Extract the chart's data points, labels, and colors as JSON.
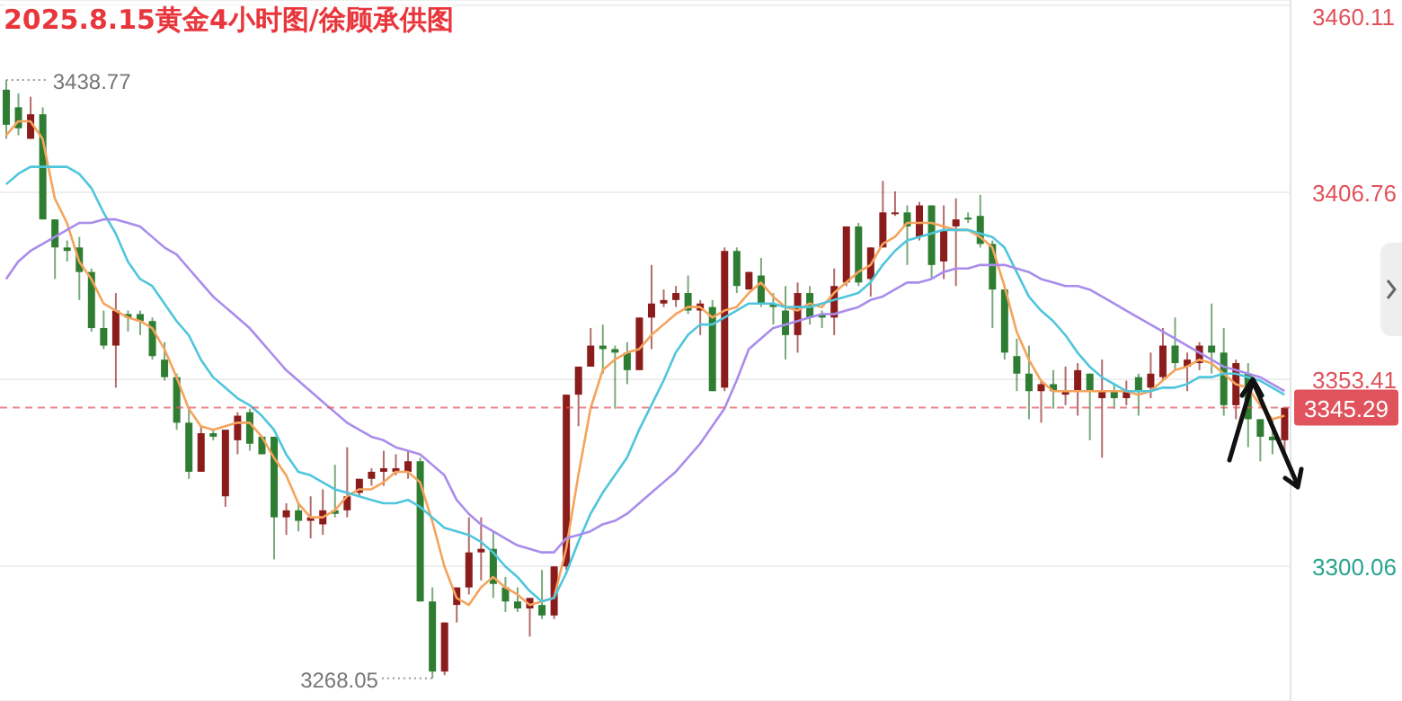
{
  "chart_data": {
    "type": "candlestick",
    "title": "2025.8.15黄金4小时图/徐顾承供图",
    "categories": [
      null,
      null,
      null,
      null,
      null,
      null,
      null,
      null,
      null,
      null,
      null,
      null,
      null,
      null,
      null,
      null,
      null,
      null,
      null,
      null,
      null,
      null,
      null,
      null,
      null,
      null,
      null,
      null,
      null,
      null,
      null,
      null,
      null,
      null,
      null,
      null,
      null,
      null,
      null,
      null,
      null,
      null,
      null,
      null,
      null,
      null,
      null,
      null,
      null,
      null,
      null,
      null,
      null,
      null,
      null,
      null,
      null,
      null,
      null,
      null,
      null,
      null,
      null,
      null,
      null,
      null,
      null,
      null,
      null,
      null,
      null,
      null,
      null,
      null,
      null,
      null,
      null,
      null,
      null,
      null,
      null,
      null,
      null,
      null,
      null,
      null,
      null,
      null,
      null,
      null,
      null,
      null,
      null,
      null,
      null,
      null,
      null,
      null,
      null,
      null,
      null,
      null,
      null,
      null,
      null,
      null
    ],
    "ohlc": [
      [
        3436,
        3438.77,
        3422,
        3426
      ],
      [
        3431,
        3435,
        3423,
        3425
      ],
      [
        3422,
        3434,
        3422,
        3429
      ],
      [
        3429,
        3431,
        3399,
        3399
      ],
      [
        3399,
        3399,
        3382,
        3391
      ],
      [
        3391,
        3393,
        3387,
        3390
      ],
      [
        3391,
        3394,
        3376,
        3384
      ],
      [
        3384,
        3385,
        3367,
        3368
      ],
      [
        3368,
        3373,
        3362,
        3363
      ],
      [
        3363,
        3378,
        3351,
        3373
      ],
      [
        3372,
        3373,
        3367,
        3371
      ],
      [
        3372,
        3373,
        3366,
        3370
      ],
      [
        3370,
        3371,
        3359,
        3360
      ],
      [
        3359,
        3364,
        3353,
        3354
      ],
      [
        3354,
        3355,
        3339,
        3341
      ],
      [
        3341,
        3345,
        3325,
        3327
      ],
      [
        3327,
        3340,
        3327,
        3338
      ],
      [
        3338,
        3339,
        3336,
        3337
      ],
      [
        3320,
        3339,
        3317,
        3339
      ],
      [
        3336,
        3344,
        3332,
        3343
      ],
      [
        3344,
        3345,
        3333,
        3335
      ],
      [
        3337,
        3337,
        3332,
        3332
      ],
      [
        3337,
        3337,
        3302,
        3314
      ],
      [
        3314,
        3318,
        3309,
        3316
      ],
      [
        3316,
        3318,
        3310,
        3313
      ],
      [
        3313,
        3320,
        3308,
        3314
      ],
      [
        3312,
        3322,
        3309,
        3316
      ],
      [
        3316,
        3329,
        3314,
        3315
      ],
      [
        3316,
        3334,
        3314,
        3320
      ],
      [
        3321,
        3325,
        3320,
        3325
      ],
      [
        3325,
        3328,
        3323,
        3327
      ],
      [
        3327,
        3333,
        3323,
        3328
      ],
      [
        3327,
        3332,
        3326,
        3328
      ],
      [
        3327,
        3333,
        3325,
        3330
      ],
      [
        3330,
        3331,
        3290,
        3290
      ],
      [
        3290,
        3294,
        3268.05,
        3270
      ],
      [
        3270,
        3284,
        3269,
        3284
      ],
      [
        3289,
        3294,
        3284,
        3294
      ],
      [
        3294,
        3314,
        3292,
        3304
      ],
      [
        3304,
        3314,
        3296,
        3305
      ],
      [
        3305,
        3310,
        3291,
        3295
      ],
      [
        3294,
        3297,
        3287,
        3290
      ],
      [
        3290,
        3294,
        3287,
        3288
      ],
      [
        3288,
        3291,
        3280,
        3291
      ],
      [
        3289,
        3299,
        3285,
        3286
      ],
      [
        3286,
        3300,
        3285,
        3300
      ],
      [
        3300,
        3349,
        3299,
        3349
      ],
      [
        3349,
        3357,
        3340,
        3357
      ],
      [
        3357,
        3368,
        3357,
        3363
      ],
      [
        3363,
        3369,
        3355,
        3362
      ],
      [
        3362,
        3363,
        3345,
        3361
      ],
      [
        3361,
        3364,
        3352,
        3356
      ],
      [
        3356,
        3371,
        3356,
        3371
      ],
      [
        3371,
        3386,
        3362,
        3375
      ],
      [
        3375,
        3379,
        3374,
        3376
      ],
      [
        3376,
        3380,
        3374,
        3378
      ],
      [
        3378,
        3383,
        3372,
        3373
      ],
      [
        3373,
        3376,
        3366,
        3375
      ],
      [
        3374,
        3376,
        3350,
        3350
      ],
      [
        3351,
        3391,
        3350,
        3390
      ],
      [
        3390,
        3391,
        3378,
        3380
      ],
      [
        3379,
        3384,
        3379,
        3384
      ],
      [
        3383,
        3388,
        3374,
        3375
      ],
      [
        3375,
        3378,
        3369,
        3374
      ],
      [
        3373,
        3380,
        3359,
        3366
      ],
      [
        3366,
        3381,
        3361,
        3378
      ],
      [
        3378,
        3380,
        3369,
        3371
      ],
      [
        3372,
        3373,
        3368,
        3371
      ],
      [
        3371,
        3385,
        3366,
        3380
      ],
      [
        3381,
        3397,
        3380,
        3397
      ],
      [
        3397,
        3398,
        3380,
        3381
      ],
      [
        3382,
        3391,
        3377,
        3391
      ],
      [
        3391,
        3410,
        3391,
        3401
      ],
      [
        3401,
        3407,
        3400,
        3401
      ],
      [
        3401,
        3403,
        3386,
        3397
      ],
      [
        3394,
        3404,
        3393,
        3403
      ],
      [
        3403,
        3403,
        3382,
        3386
      ],
      [
        3387,
        3403,
        3382,
        3396
      ],
      [
        3397,
        3405,
        3380,
        3399
      ],
      [
        3399.5,
        3401,
        3398,
        3399
      ],
      [
        3400,
        3406,
        3391,
        3392
      ],
      [
        3392,
        3393,
        3368,
        3379
      ],
      [
        3379,
        3380,
        3359,
        3361
      ],
      [
        3360,
        3365,
        3350,
        3355
      ],
      [
        3355,
        3363,
        3342,
        3350
      ],
      [
        3350,
        3353,
        3341,
        3352
      ],
      [
        3352,
        3356,
        3345,
        3350
      ],
      [
        3349,
        3357,
        3346,
        3350
      ],
      [
        3350,
        3358,
        3343,
        3356
      ],
      [
        3355,
        3355,
        3336,
        3350
      ],
      [
        3348,
        3359,
        3331,
        3350
      ],
      [
        3350,
        3352,
        3345,
        3348
      ],
      [
        3348,
        3353,
        3346,
        3350
      ],
      [
        3354,
        3355,
        3343,
        3350
      ],
      [
        3351,
        3361,
        3348,
        3355
      ],
      [
        3354,
        3368,
        3353,
        3363
      ],
      [
        3363,
        3371,
        3356,
        3358
      ],
      [
        3357,
        3361,
        3350,
        3359
      ],
      [
        3358,
        3364,
        3356,
        3363
      ],
      [
        3363,
        3375,
        3355,
        3361
      ],
      [
        3361,
        3368,
        3343,
        3346
      ],
      [
        3346,
        3359,
        3342,
        3358
      ],
      [
        3355,
        3358,
        3334,
        3342
      ],
      [
        3342,
        3342,
        3330,
        3337
      ],
      [
        3337,
        3342,
        3332,
        3336
      ],
      [
        3336,
        3345.29,
        3332,
        3345.29
      ]
    ],
    "colors": [
      "#2f7d32",
      "#2f7d32",
      "#8b1c1c",
      "#2f7d32",
      "#2f7d32",
      "#2f7d32",
      "#2f7d32",
      "#2f7d32",
      "#2f7d32",
      "#8b1c1c",
      "#2f7d32",
      "#2f7d32",
      "#2f7d32",
      "#2f7d32",
      "#2f7d32",
      "#2f7d32",
      "#8b1c1c",
      "#2f7d32",
      "#8b1c1c",
      "#8b1c1c",
      "#2f7d32",
      "#2f7d32",
      "#2f7d32",
      "#8b1c1c",
      "#2f7d32",
      "#8b1c1c",
      "#8b1c1c",
      "#2f7d32",
      "#8b1c1c",
      "#8b1c1c",
      "#8b1c1c",
      "#8b1c1c",
      "#8b1c1c",
      "#8b1c1c",
      "#2f7d32",
      "#2f7d32",
      "#8b1c1c",
      "#8b1c1c",
      "#8b1c1c",
      "#8b1c1c",
      "#2f7d32",
      "#2f7d32",
      "#2f7d32",
      "#8b1c1c",
      "#2f7d32",
      "#8b1c1c",
      "#8b1c1c",
      "#8b1c1c",
      "#8b1c1c",
      "#2f7d32",
      "#2f7d32",
      "#2f7d32",
      "#8b1c1c",
      "#8b1c1c",
      "#8b1c1c",
      "#8b1c1c",
      "#2f7d32",
      "#8b1c1c",
      "#2f7d32",
      "#8b1c1c",
      "#2f7d32",
      "#8b1c1c",
      "#2f7d32",
      "#2f7d32",
      "#2f7d32",
      "#8b1c1c",
      "#2f7d32",
      "#2f7d32",
      "#8b1c1c",
      "#8b1c1c",
      "#2f7d32",
      "#8b1c1c",
      "#8b1c1c",
      "#8b1c1c",
      "#2f7d32",
      "#8b1c1c",
      "#2f7d32",
      "#8b1c1c",
      "#8b1c1c",
      "#2f7d32",
      "#2f7d32",
      "#2f7d32",
      "#2f7d32",
      "#2f7d32",
      "#2f7d32",
      "#8b1c1c",
      "#2f7d32",
      "#8b1c1c",
      "#8b1c1c",
      "#2f7d32",
      "#8b1c1c",
      "#2f7d32",
      "#8b1c1c",
      "#2f7d32",
      "#8b1c1c",
      "#8b1c1c",
      "#2f7d32",
      "#8b1c1c",
      "#8b1c1c",
      "#2f7d32",
      "#2f7d32",
      "#8b1c1c",
      "#2f7d32",
      "#2f7d32",
      "#2f7d32",
      "#8b1c1c"
    ],
    "series": [
      {
        "type": "line",
        "color": "#f5a35c",
        "values": [
          3423,
          3427,
          3427,
          3422,
          3405,
          3398,
          3387,
          3382,
          3375,
          3373,
          3371,
          3370,
          3368,
          3362,
          3354,
          3345,
          3340,
          3339,
          3340,
          3341,
          3341,
          3337,
          3331,
          3326,
          3318,
          3314,
          3314,
          3316,
          3320,
          3322,
          3322,
          3324,
          3327,
          3327,
          3324,
          3313,
          3300,
          3291,
          3289,
          3294,
          3297,
          3294,
          3292,
          3289,
          3290,
          3291,
          3305,
          3326,
          3345,
          3356,
          3359,
          3361,
          3362,
          3366,
          3369,
          3372,
          3374,
          3374,
          3371,
          3373,
          3374,
          3378,
          3381,
          3377,
          3374,
          3373,
          3375,
          3374,
          3378,
          3381,
          3384,
          3386,
          3392,
          3394,
          3398,
          3398,
          3398,
          3397,
          3396,
          3396,
          3394,
          3391,
          3380,
          3367,
          3359,
          3353,
          3350,
          3350,
          3350,
          3350,
          3350,
          3350,
          3350,
          3349,
          3350,
          3353,
          3356,
          3357,
          3359,
          3358,
          3355,
          3352,
          3351,
          3346,
          3342,
          3343
        ]
      },
      {
        "type": "line",
        "color": "#4fc6dc",
        "values": [
          3409,
          3412,
          3414,
          3414,
          3414,
          3414,
          3412,
          3408,
          3401,
          3395,
          3387,
          3382,
          3380,
          3375,
          3370,
          3366,
          3359,
          3354,
          3351,
          3348,
          3346,
          3343,
          3339,
          3332,
          3327,
          3326,
          3324,
          3322,
          3321,
          3320,
          3319,
          3318,
          3318,
          3319,
          3317,
          3314,
          3311,
          3310,
          3309,
          3307,
          3304,
          3300,
          3297,
          3293,
          3290,
          3291,
          3298,
          3307,
          3315,
          3321,
          3326,
          3331,
          3339,
          3346,
          3353,
          3361,
          3366,
          3369,
          3369,
          3371,
          3373,
          3375,
          3375,
          3375,
          3374,
          3374,
          3374,
          3375,
          3376,
          3377,
          3378,
          3381,
          3386,
          3390,
          3393,
          3394,
          3395,
          3396,
          3396,
          3396,
          3395,
          3394,
          3391,
          3384,
          3377,
          3373,
          3370,
          3366,
          3361,
          3357,
          3354,
          3352,
          3350,
          3350,
          3350,
          3351,
          3351,
          3352,
          3354,
          3354,
          3355,
          3355,
          3354,
          3353,
          3351,
          3349
        ]
      },
      {
        "type": "line",
        "color": "#a98cec",
        "values": [
          3382,
          3387,
          3390,
          3392,
          3394,
          3396,
          3398,
          3398,
          3399,
          3399,
          3398,
          3397,
          3394,
          3391,
          3389,
          3385,
          3381,
          3377,
          3374,
          3371,
          3368,
          3364,
          3360,
          3356,
          3353,
          3350,
          3347,
          3344,
          3341,
          3339,
          3337,
          3336,
          3334,
          3333,
          3332,
          3329,
          3326,
          3319,
          3315,
          3312,
          3310,
          3308,
          3306,
          3305,
          3304,
          3304,
          3308,
          3309,
          3310,
          3312,
          3313,
          3315,
          3318,
          3321,
          3324,
          3327,
          3331,
          3335,
          3340,
          3345,
          3353,
          3362,
          3365,
          3368,
          3369,
          3370,
          3371,
          3372,
          3372,
          3373,
          3374,
          3376,
          3377,
          3379,
          3381,
          3381,
          3382,
          3384,
          3385,
          3385,
          3386,
          3386,
          3386,
          3385,
          3384,
          3382,
          3381,
          3380,
          3380,
          3379,
          3377,
          3375,
          3373,
          3371,
          3369,
          3367,
          3365,
          3363,
          3361,
          3359,
          3357,
          3356,
          3355,
          3354,
          3352,
          3350
        ]
      }
    ],
    "ylim": [
      3261.6,
      3461.6
    ],
    "yticks": [
      3460.11,
      3406.76,
      3353.41,
      3300.06
    ],
    "grid": "y",
    "tick_labels": "y",
    "ref_lines": [
      {
        "axis": "y",
        "value": 3345.29,
        "label": "3345.29",
        "color": "#e0525c",
        "line_style": "dashed"
      }
    ],
    "annotations": [
      "3438.77",
      "3268.05"
    ]
  }
}
